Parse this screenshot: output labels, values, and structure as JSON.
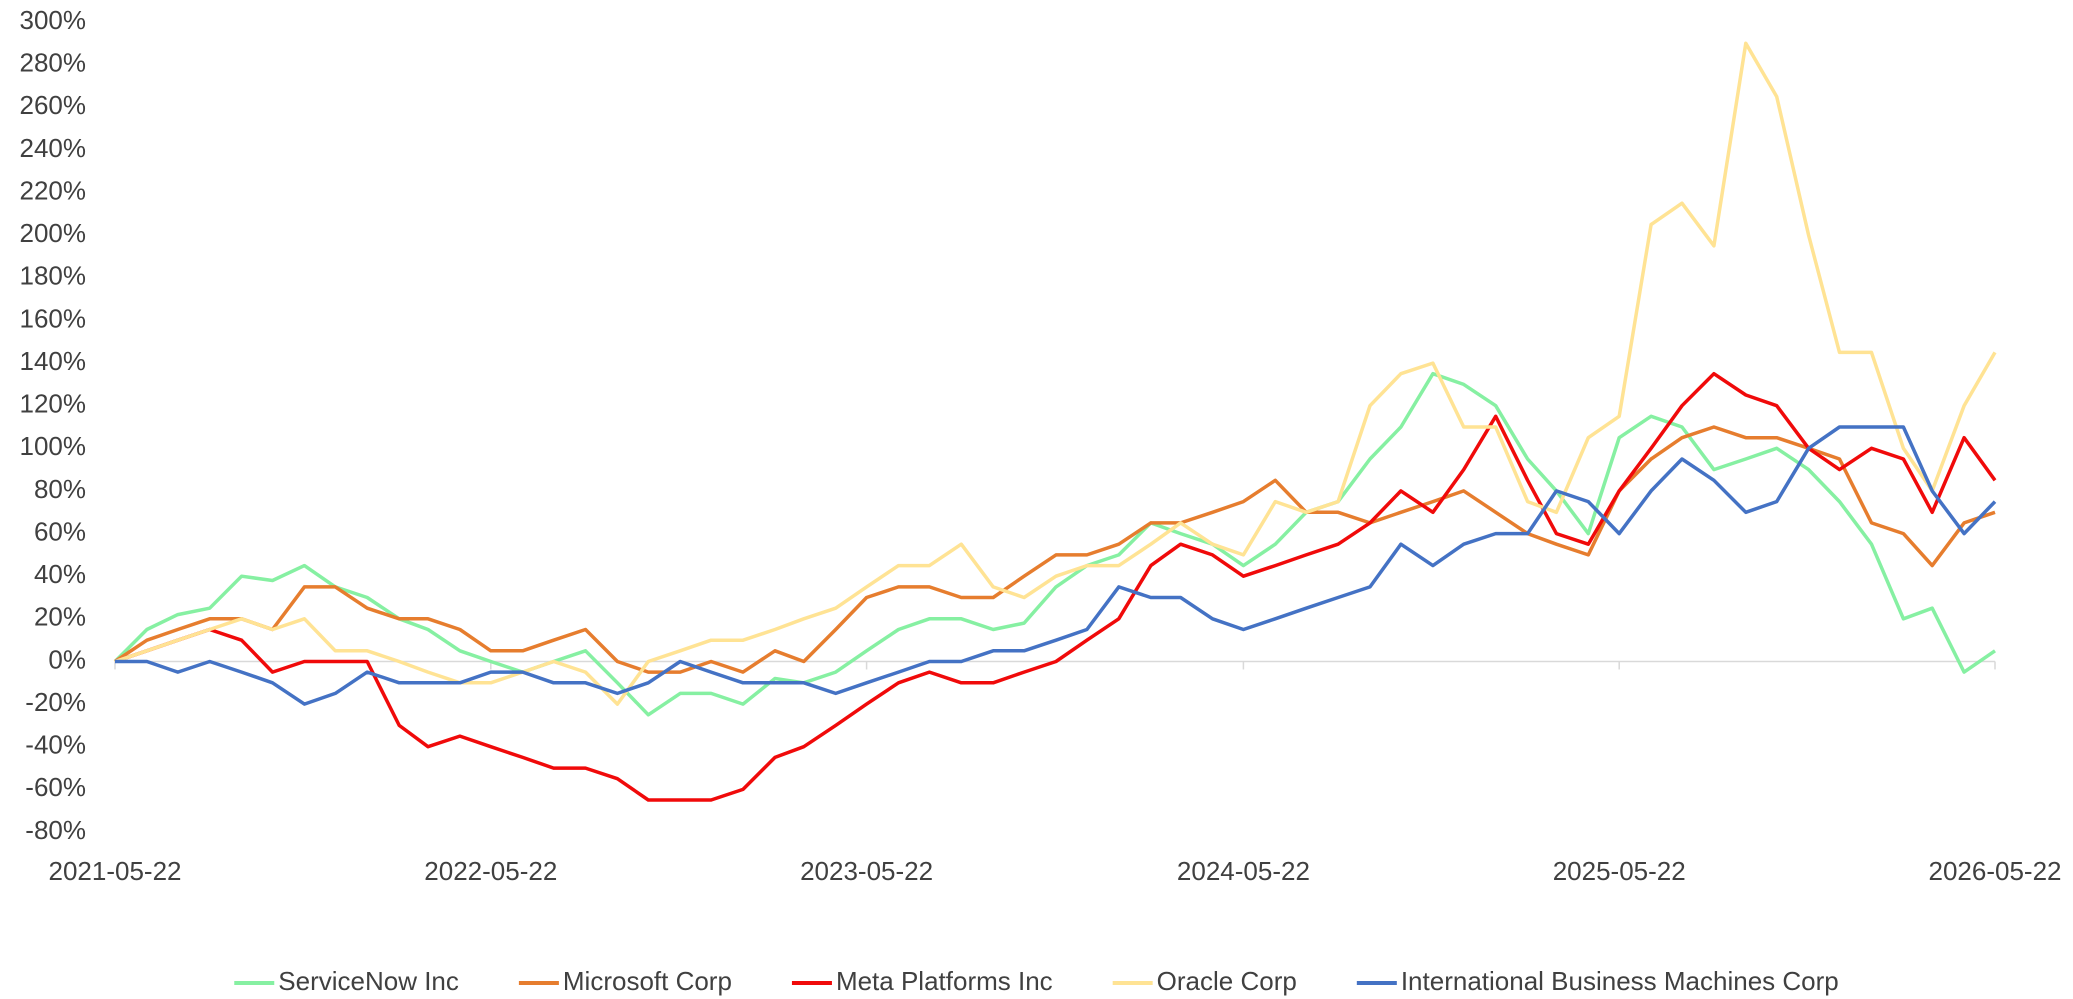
{
  "chart_data": {
    "type": "line",
    "x": [
      "2021-05-22",
      "2021-06-22",
      "2021-07-22",
      "2021-08-22",
      "2021-09-22",
      "2021-10-22",
      "2021-11-22",
      "2021-12-22",
      "2022-01-22",
      "2022-02-22",
      "2022-03-22",
      "2022-04-22",
      "2022-05-22",
      "2022-06-22",
      "2022-07-22",
      "2022-08-22",
      "2022-09-22",
      "2022-10-22",
      "2022-11-22",
      "2022-12-22",
      "2023-01-22",
      "2023-02-22",
      "2023-03-22",
      "2023-04-22",
      "2023-05-22",
      "2023-06-22",
      "2023-07-22",
      "2023-08-22",
      "2023-09-22",
      "2023-10-22",
      "2023-11-22",
      "2023-12-22",
      "2024-01-22",
      "2024-02-22",
      "2024-03-22",
      "2024-04-22",
      "2024-05-22",
      "2024-06-22",
      "2024-07-22",
      "2024-08-22",
      "2024-09-22",
      "2024-10-22",
      "2024-11-22",
      "2024-12-22",
      "2025-01-22",
      "2025-02-22",
      "2025-03-22",
      "2025-04-22",
      "2025-05-22",
      "2025-06-22",
      "2025-07-22",
      "2025-08-22",
      "2025-09-22",
      "2025-10-22",
      "2025-11-22",
      "2025-12-22",
      "2026-01-22",
      "2026-02-22",
      "2026-03-22",
      "2026-04-22",
      "2026-05-22"
    ],
    "series": [
      {
        "name": "ServiceNow Inc",
        "color": "#86f0a2",
        "values": [
          0,
          15,
          22,
          25,
          40,
          38,
          45,
          35,
          30,
          20,
          15,
          5,
          0,
          -5,
          0,
          5,
          -10,
          -25,
          -15,
          -15,
          -20,
          -8,
          -10,
          -5,
          5,
          15,
          20,
          20,
          15,
          18,
          35,
          45,
          50,
          65,
          60,
          55,
          45,
          55,
          70,
          75,
          95,
          110,
          135,
          130,
          120,
          95,
          80,
          60,
          105,
          115,
          110,
          90,
          95,
          100,
          90,
          75,
          55,
          20,
          25,
          -5,
          5
        ]
      },
      {
        "name": "Microsoft Corp",
        "color": "#e67d2e",
        "values": [
          0,
          10,
          15,
          20,
          20,
          15,
          35,
          35,
          25,
          20,
          20,
          15,
          5,
          5,
          10,
          15,
          0,
          -5,
          -5,
          0,
          -5,
          5,
          0,
          15,
          30,
          35,
          35,
          30,
          30,
          40,
          50,
          50,
          55,
          65,
          65,
          70,
          75,
          85,
          70,
          70,
          65,
          70,
          75,
          80,
          70,
          60,
          55,
          50,
          80,
          95,
          105,
          110,
          105,
          105,
          100,
          95,
          65,
          60,
          45,
          65,
          70
        ]
      },
      {
        "name": "Meta Platforms Inc",
        "color": "#f00a0a",
        "values": [
          0,
          5,
          10,
          15,
          10,
          -5,
          0,
          0,
          0,
          -30,
          -40,
          -35,
          -40,
          -45,
          -50,
          -50,
          -55,
          -65,
          -65,
          -65,
          -60,
          -45,
          -40,
          -30,
          -20,
          -10,
          -5,
          -10,
          -10,
          -5,
          0,
          10,
          20,
          45,
          55,
          50,
          40,
          45,
          50,
          55,
          65,
          80,
          70,
          90,
          115,
          85,
          60,
          55,
          80,
          100,
          120,
          135,
          125,
          120,
          100,
          90,
          100,
          95,
          70,
          105,
          85
        ]
      },
      {
        "name": "Oracle Corp",
        "color": "#ffe394",
        "values": [
          0,
          5,
          10,
          15,
          20,
          15,
          20,
          5,
          5,
          0,
          -5,
          -10,
          -10,
          -5,
          0,
          -5,
          -20,
          0,
          5,
          10,
          10,
          15,
          20,
          25,
          35,
          45,
          45,
          55,
          35,
          30,
          40,
          45,
          45,
          55,
          65,
          55,
          50,
          75,
          70,
          75,
          120,
          135,
          140,
          110,
          110,
          75,
          70,
          105,
          115,
          205,
          215,
          195,
          290,
          265,
          200,
          145,
          145,
          100,
          80,
          120,
          145
        ]
      },
      {
        "name": "International Business Machines Corp",
        "color": "#4472c4",
        "values": [
          0,
          0,
          -5,
          0,
          -5,
          -10,
          -20,
          -15,
          -5,
          -10,
          -10,
          -10,
          -5,
          -5,
          -10,
          -10,
          -15,
          -10,
          0,
          -5,
          -10,
          -10,
          -10,
          -15,
          -10,
          -5,
          0,
          0,
          5,
          5,
          10,
          15,
          35,
          30,
          30,
          20,
          15,
          20,
          25,
          30,
          35,
          55,
          45,
          55,
          60,
          60,
          80,
          75,
          60,
          80,
          95,
          85,
          70,
          75,
          100,
          110,
          110,
          110,
          80,
          60,
          75
        ]
      }
    ],
    "xlim": [
      "2021-05-22",
      "2026-05-22"
    ],
    "xticks": [
      "2021-05-22",
      "2022-05-22",
      "2023-05-22",
      "2024-05-22",
      "2025-05-22",
      "2026-05-22"
    ],
    "ylim": [
      -80,
      300
    ],
    "yticks": [
      {
        "value": -80,
        "label": "-80%"
      },
      {
        "value": -60,
        "label": "-60%"
      },
      {
        "value": -40,
        "label": "-40%"
      },
      {
        "value": -20,
        "label": "-20%"
      },
      {
        "value": 0,
        "label": "0%"
      },
      {
        "value": 20,
        "label": "20%"
      },
      {
        "value": 40,
        "label": "40%"
      },
      {
        "value": 60,
        "label": "60%"
      },
      {
        "value": 80,
        "label": "80%"
      },
      {
        "value": 100,
        "label": "100%"
      },
      {
        "value": 120,
        "label": "120%"
      },
      {
        "value": 140,
        "label": "140%"
      },
      {
        "value": 160,
        "label": "160%"
      },
      {
        "value": 180,
        "label": "180%"
      },
      {
        "value": 200,
        "label": "200%"
      },
      {
        "value": 220,
        "label": "220%"
      },
      {
        "value": 240,
        "label": "240%"
      },
      {
        "value": 260,
        "label": "260%"
      },
      {
        "value": 280,
        "label": "280%"
      },
      {
        "value": 300,
        "label": "300%"
      }
    ],
    "legend": "bottom"
  }
}
